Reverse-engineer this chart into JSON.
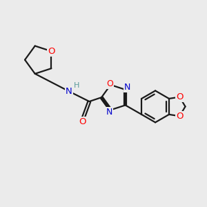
{
  "background_color": "#ebebeb",
  "bond_color": "#1a1a1a",
  "bond_width": 1.6,
  "atom_colors": {
    "O": "#ff0000",
    "N": "#0000cc",
    "C": "#1a1a1a",
    "H": "#5a9a9a"
  },
  "font_size": 8.5,
  "fig_size": [
    3.0,
    3.0
  ],
  "dpi": 100,
  "xlim": [
    0,
    10
  ],
  "ylim": [
    0,
    10
  ]
}
